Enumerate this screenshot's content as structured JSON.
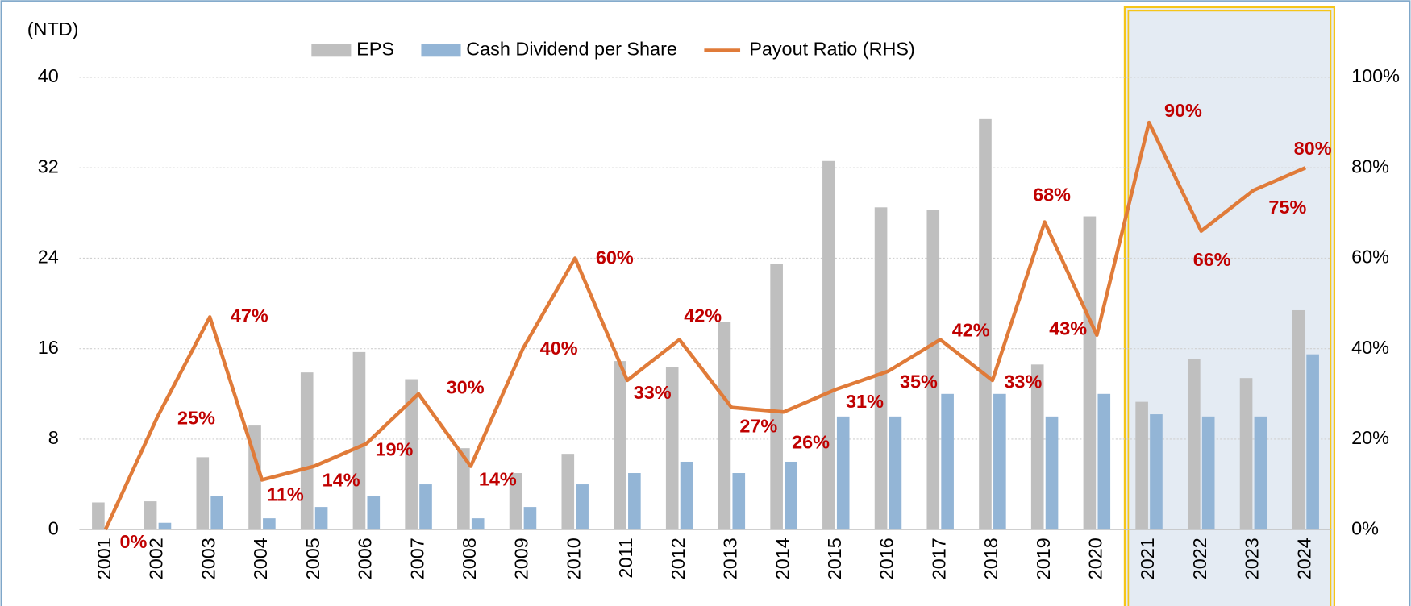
{
  "chart_data": {
    "type": "bar_line",
    "y_label": "(NTD)",
    "categories": [
      "2001",
      "2002",
      "2003",
      "2004",
      "2005",
      "2006",
      "2007",
      "2008",
      "2009",
      "2010",
      "2011",
      "2012",
      "2013",
      "2014",
      "2015",
      "2016",
      "2017",
      "2018",
      "2019",
      "2020",
      "2021",
      "2022",
      "2023",
      "2024"
    ],
    "series": [
      {
        "name": "EPS",
        "type": "bar",
        "color": "#bfbfbf",
        "values": [
          2.4,
          2.5,
          6.4,
          9.2,
          13.9,
          15.7,
          13.3,
          7.2,
          5.0,
          6.7,
          14.9,
          14.4,
          18.4,
          23.5,
          32.6,
          28.5,
          28.3,
          36.3,
          14.6,
          27.7,
          11.3,
          15.1,
          13.4,
          19.4
        ]
      },
      {
        "name": "Cash Dividend per Share",
        "type": "bar",
        "color": "#93b5d6",
        "values": [
          0,
          0.6,
          3.0,
          1.0,
          2.0,
          3.0,
          4.0,
          1.0,
          2.0,
          4.0,
          5.0,
          6.0,
          5.0,
          6.0,
          10,
          10,
          12,
          12,
          10,
          12,
          10.2,
          10,
          10,
          15.5
        ]
      },
      {
        "name": "Payout Ratio (RHS)",
        "type": "line",
        "axis": "y2",
        "color": "#e07b39",
        "values": [
          0,
          25,
          47,
          11,
          14,
          19,
          30,
          14,
          40,
          60,
          33,
          42,
          27,
          26,
          31,
          35,
          42,
          33,
          68,
          43,
          90,
          66,
          75,
          80
        ],
        "value_labels": [
          "0%",
          "25%",
          "47%",
          "11%",
          "14%",
          "19%",
          "30%",
          "14%",
          "40%",
          "60%",
          "33%",
          "42%",
          "27%",
          "26%",
          "31%",
          "35%",
          "42%",
          "33%",
          "68%",
          "43%",
          "90%",
          "66%",
          "75%",
          "80%"
        ]
      }
    ],
    "ylim": [
      0,
      40
    ],
    "yticks": [
      0,
      8,
      16,
      24,
      32,
      40
    ],
    "y2lim": [
      0,
      100
    ],
    "y2ticks": [
      {
        "value": 0,
        "label": "0%"
      },
      {
        "value": 20,
        "label": "20%"
      },
      {
        "value": 40,
        "label": "40%"
      },
      {
        "value": 60,
        "label": "60%"
      },
      {
        "value": 80,
        "label": "80%"
      },
      {
        "value": 100,
        "label": "100%"
      }
    ],
    "grid": true,
    "legend": "top"
  }
}
